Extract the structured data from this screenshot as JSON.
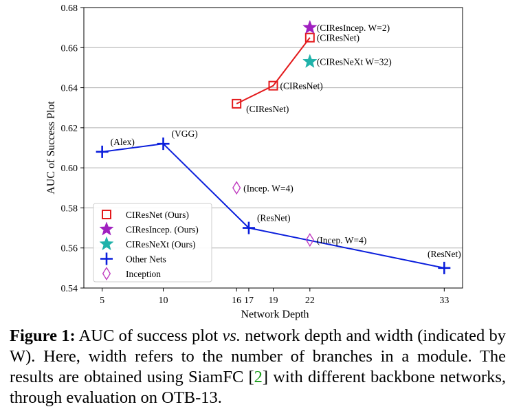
{
  "chart_data": {
    "type": "line",
    "xlabel": "Network Depth",
    "ylabel": "AUC of Success Plot",
    "ylim": [
      0.54,
      0.68
    ],
    "x_ticks": [
      5,
      10,
      16,
      17,
      19,
      22,
      33
    ],
    "y_ticks": [
      "0.54",
      "0.56",
      "0.58",
      "0.60",
      "0.62",
      "0.64",
      "0.66",
      "0.68"
    ],
    "grid": "horizontal",
    "legend_position": "left-center",
    "legend": [
      {
        "key": "cir",
        "label": "CIResNet (Ours)"
      },
      {
        "key": "incep",
        "label": "CIResIncep. (Ours)"
      },
      {
        "key": "next",
        "label": "CIResNeXt (Ours)"
      },
      {
        "key": "other",
        "label": "Other Nets"
      },
      {
        "key": "inception",
        "label": "Inception"
      }
    ],
    "series": [
      {
        "name": "CIResNet (Ours)",
        "key": "cir",
        "marker": "square",
        "color": "#e31a1c",
        "line": true,
        "points": [
          {
            "x": 16,
            "y": 0.632,
            "label": "(CIResNet)",
            "label_pos": "below-right"
          },
          {
            "x": 19,
            "y": 0.641,
            "label": "(CIResNet)",
            "label_pos": "right"
          },
          {
            "x": 22,
            "y": 0.665,
            "label": "(CIResNet)",
            "label_pos": "right"
          }
        ]
      },
      {
        "name": "CIResIncep. (Ours)",
        "key": "incep",
        "marker": "star",
        "color": "#a020c0",
        "line": false,
        "points": [
          {
            "x": 22,
            "y": 0.67,
            "label": "(CIResIncep. W=2)",
            "label_pos": "right"
          }
        ]
      },
      {
        "name": "CIResNeXt (Ours)",
        "key": "next",
        "marker": "star",
        "color": "#20b2aa",
        "line": false,
        "points": [
          {
            "x": 22,
            "y": 0.653,
            "label": "(CIResNeXt W=32)",
            "label_pos": "right"
          }
        ]
      },
      {
        "name": "Other Nets",
        "key": "other",
        "marker": "plus",
        "color": "#0a1edc",
        "line": true,
        "points": [
          {
            "x": 5,
            "y": 0.608,
            "label": "(Alex)",
            "label_pos": "above-right"
          },
          {
            "x": 10,
            "y": 0.612,
            "label": "(VGG)",
            "label_pos": "above-right"
          },
          {
            "x": 17,
            "y": 0.57,
            "label": "(ResNet)",
            "label_pos": "above-right"
          },
          {
            "x": 33,
            "y": 0.55,
            "label": "(ResNet)",
            "label_pos": "above"
          }
        ]
      },
      {
        "name": "Inception",
        "key": "inception",
        "marker": "diamond",
        "color": "#c03cc0",
        "line": false,
        "points": [
          {
            "x": 16,
            "y": 0.59,
            "label": "(Incep. W=4)",
            "label_pos": "right"
          },
          {
            "x": 22,
            "y": 0.564,
            "label": "(Incep. W=4)",
            "label_pos": "right"
          }
        ]
      }
    ]
  },
  "caption": {
    "label": "Figure 1:",
    "text_1": " AUC of success plot ",
    "text_vs": "vs.",
    "text_2": " network depth and width (indicated by W). Here, width refers to the number of branches in a module. The results are obtained using SiamFC ",
    "ref_open": "[",
    "ref_num": "2",
    "ref_close": "]",
    "text_3": " with different backbone networks, through evaluation on OTB-13."
  }
}
